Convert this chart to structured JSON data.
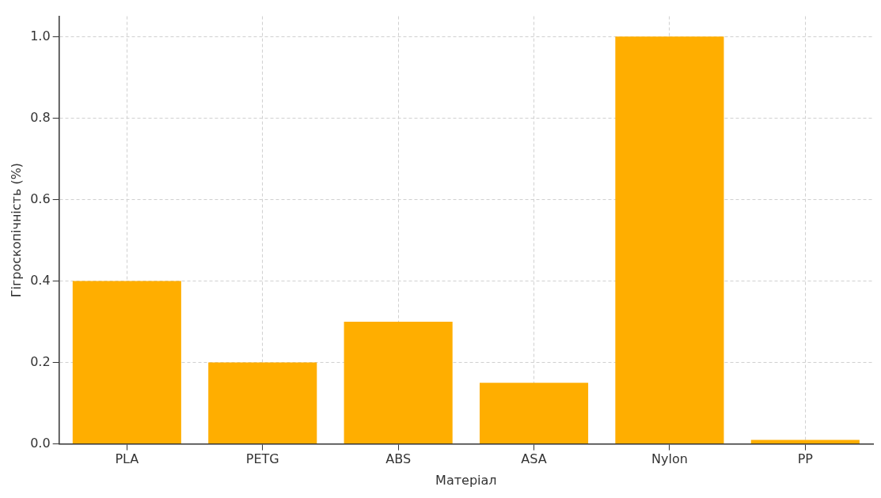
{
  "chart_data": {
    "type": "bar",
    "xlabel": "Матеріал",
    "ylabel": "Гігроскопічність (%)",
    "categories": [
      "PLA",
      "PETG",
      "ABS",
      "ASA",
      "Nylon",
      "PP"
    ],
    "values": [
      0.4,
      0.2,
      0.3,
      0.15,
      1.0,
      0.01
    ],
    "color": "#ffae00",
    "ylim": [
      0,
      1.05
    ],
    "yticks": [
      {
        "value": 0,
        "label": "0.0"
      },
      {
        "value": 0.2,
        "label": "0.2"
      },
      {
        "value": 0.4,
        "label": "0.4"
      },
      {
        "value": 0.6,
        "label": "0.6"
      },
      {
        "value": 0.8,
        "label": "0.8"
      },
      {
        "value": 1.0,
        "label": "1.0"
      }
    ],
    "grid": true,
    "line_style": "dashed"
  }
}
